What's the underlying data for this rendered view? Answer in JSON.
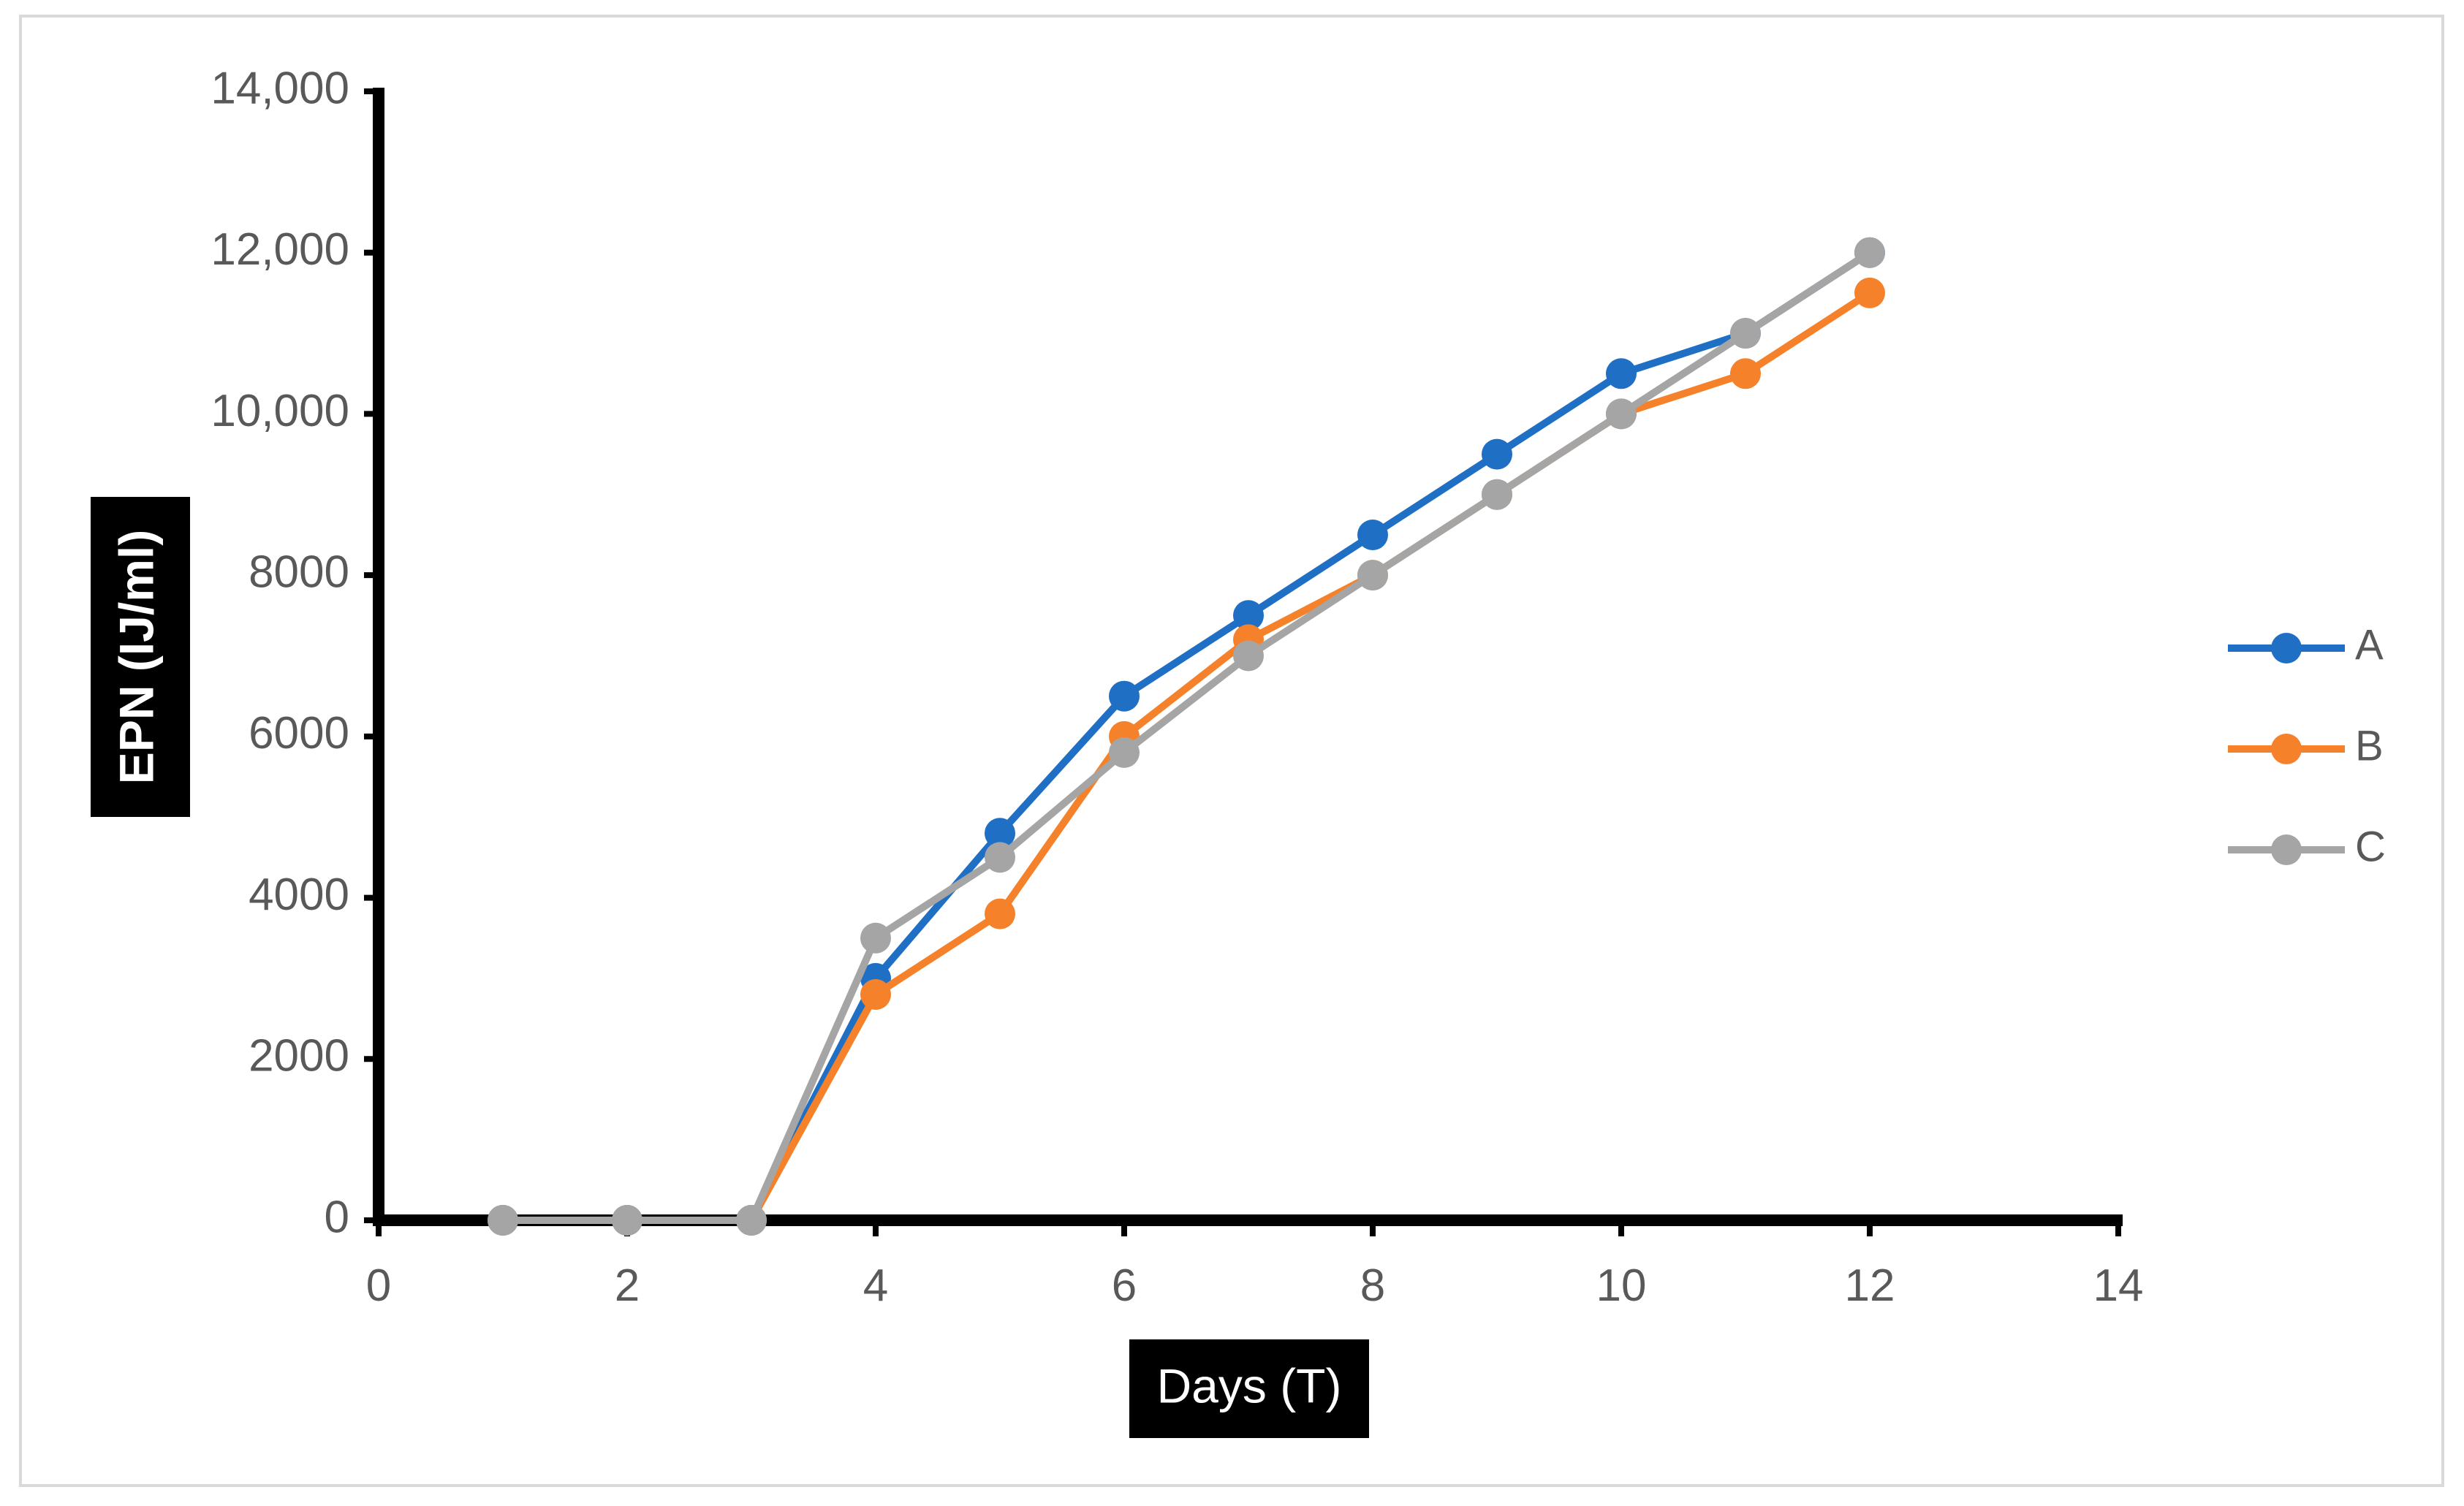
{
  "chart_data": {
    "type": "line",
    "title": "",
    "xlabel": "Days (T)",
    "ylabel": "EPN (IJ/ml)",
    "xlim": [
      0,
      14
    ],
    "ylim": [
      0,
      14000
    ],
    "x_ticks": [
      "0",
      "2",
      "4",
      "6",
      "8",
      "10",
      "12",
      "14"
    ],
    "y_ticks": [
      "0",
      "2000",
      "4000",
      "6000",
      "8000",
      "10,000",
      "12,000",
      "14,000"
    ],
    "grid": false,
    "legend_position": "right",
    "x": [
      1,
      2,
      3,
      4,
      5,
      6,
      7,
      8,
      9,
      10,
      11,
      12
    ],
    "series": [
      {
        "name": "A",
        "color": "#1f6fc5",
        "values": [
          0,
          0,
          0,
          3000,
          4800,
          6500,
          7500,
          8500,
          9500,
          10500,
          11000,
          12000
        ]
      },
      {
        "name": "B",
        "color": "#f5822a",
        "values": [
          0,
          0,
          0,
          2800,
          3800,
          6000,
          7200,
          8000,
          9000,
          10000,
          10500,
          11500
        ]
      },
      {
        "name": "C",
        "color": "#a5a5a5",
        "values": [
          0,
          0,
          0,
          3500,
          4500,
          5800,
          7000,
          8000,
          9000,
          10000,
          11000,
          12000
        ]
      }
    ]
  }
}
